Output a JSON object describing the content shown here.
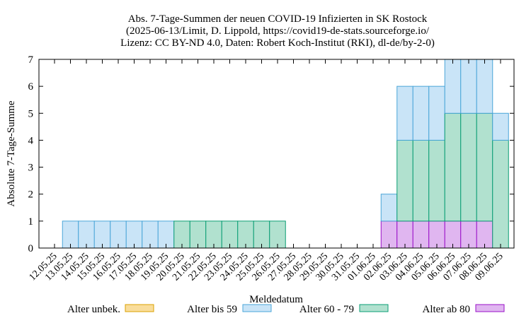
{
  "chart_data": {
    "type": "bar",
    "stacked": true,
    "title_lines": [
      "Abs. 7-Tage-Summen der neuen COVID-19 Infizierten in SK Rostock",
      "(2025-06-13/Limit, D. Lippold, https://covid19-de-stats.sourceforge.io/",
      "Lizenz: CC BY-ND 4.0, Daten: Robert Koch-Institut (RKI), dl-de/by-2-0)"
    ],
    "xlabel": "Meldedatum",
    "ylabel": "Absolute 7-Tage-Summe",
    "ylim": [
      0,
      7
    ],
    "yticks": [
      0,
      1,
      2,
      3,
      4,
      5,
      6,
      7
    ],
    "categories": [
      "12.05.25",
      "13.05.25",
      "14.05.25",
      "15.05.25",
      "16.05.25",
      "17.05.25",
      "18.05.25",
      "19.05.25",
      "20.05.25",
      "21.05.25",
      "22.05.25",
      "23.05.25",
      "24.05.25",
      "25.05.25",
      "26.05.25",
      "27.05.25",
      "28.05.25",
      "29.05.25",
      "30.05.25",
      "31.05.25",
      "01.06.25",
      "02.06.25",
      "03.06.25",
      "04.06.25",
      "05.06.25",
      "06.06.25",
      "07.06.25",
      "08.06.25",
      "09.06.25"
    ],
    "series": [
      {
        "name": "Alter unbek.",
        "color": "#f9dd9b",
        "stroke": "#dba100",
        "values": [
          0,
          0,
          0,
          0,
          0,
          0,
          0,
          0,
          0,
          0,
          0,
          0,
          0,
          0,
          0,
          0,
          0,
          0,
          0,
          0,
          0,
          0,
          0,
          0,
          0,
          0,
          0,
          0,
          0
        ]
      },
      {
        "name": "Alter ab 80",
        "color": "#e0b6f0",
        "stroke": "#9a10c8",
        "values": [
          0,
          0,
          0,
          0,
          0,
          0,
          0,
          0,
          0,
          0,
          0,
          0,
          0,
          0,
          0,
          0,
          0,
          0,
          0,
          0,
          0,
          1,
          1,
          1,
          1,
          1,
          1,
          1,
          0
        ]
      },
      {
        "name": "Alter 60 - 79",
        "color": "#b1e1cf",
        "stroke": "#0a9e74",
        "values": [
          0,
          0,
          0,
          0,
          0,
          0,
          0,
          0,
          1,
          1,
          1,
          1,
          1,
          1,
          1,
          0,
          0,
          0,
          0,
          0,
          0,
          0,
          3,
          3,
          3,
          4,
          4,
          4,
          4
        ]
      },
      {
        "name": "Alter bis 59",
        "color": "#c9e4f7",
        "stroke": "#4aa6d8",
        "values": [
          0,
          1,
          1,
          1,
          1,
          1,
          1,
          1,
          0,
          0,
          0,
          0,
          0,
          0,
          0,
          0,
          0,
          0,
          0,
          0,
          0,
          1,
          2,
          2,
          2,
          2,
          2,
          2,
          1
        ]
      }
    ],
    "legend": [
      "Alter unbek.",
      "Alter bis 59",
      "Alter 60 - 79",
      "Alter ab 80"
    ],
    "legend_placement": "bottom",
    "grid": false
  }
}
